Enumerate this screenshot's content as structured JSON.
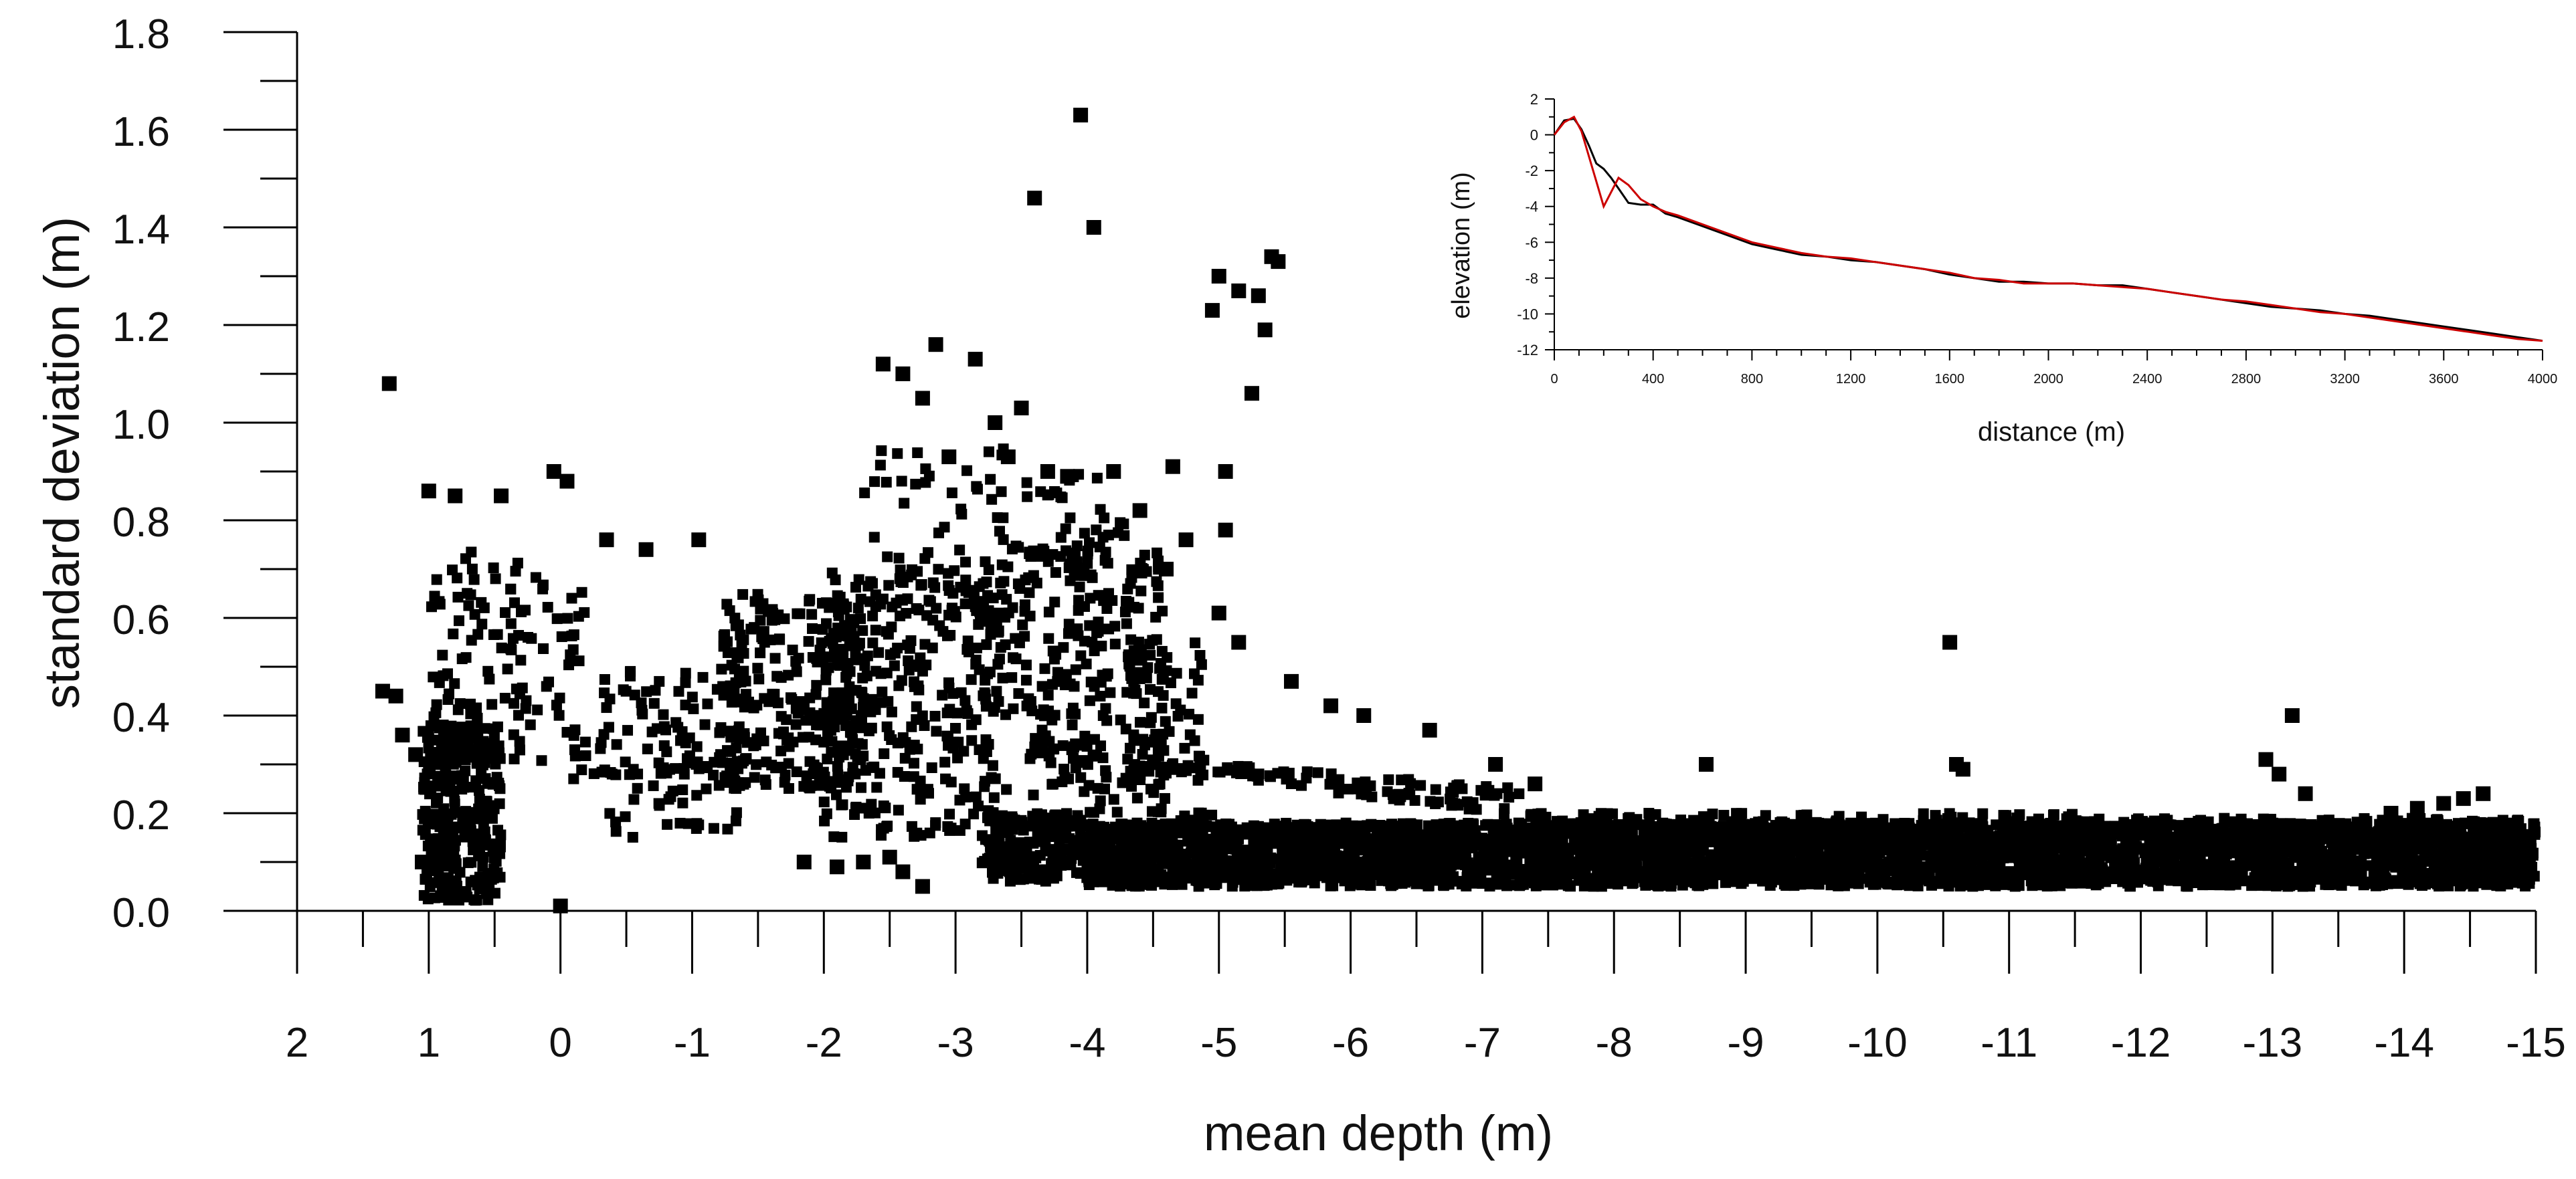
{
  "chart_data": [
    {
      "type": "scatter",
      "title": "",
      "xlabel": "mean depth (m)",
      "ylabel": "standard deviation  (m)",
      "xlim": [
        2,
        -15
      ],
      "ylim": [
        0,
        1.8
      ],
      "x_ticks": [
        "2",
        "1",
        "0",
        "-1",
        "-2",
        "-3",
        "-4",
        "-5",
        "-6",
        "-7",
        "-8",
        "-9",
        "-10",
        "-11",
        "-12",
        "-13",
        "-14",
        "-15"
      ],
      "y_ticks": [
        "0.0",
        "0.2",
        "0.4",
        "0.6",
        "0.8",
        "1.0",
        "1.2",
        "1.4",
        "1.6",
        "1.8"
      ],
      "grid": false,
      "marker_color": "#000000",
      "sparse_points": [
        [
          1.3,
          1.08
        ],
        [
          -3.95,
          1.63
        ],
        [
          -3.6,
          1.46
        ],
        [
          -4.05,
          1.4
        ],
        [
          -5.4,
          1.34
        ],
        [
          -5.45,
          1.33
        ],
        [
          -5.0,
          1.3
        ],
        [
          -5.15,
          1.27
        ],
        [
          -5.3,
          1.26
        ],
        [
          -4.95,
          1.23
        ],
        [
          -5.35,
          1.19
        ],
        [
          -5.25,
          1.06
        ],
        [
          -2.85,
          1.16
        ],
        [
          -3.15,
          1.13
        ],
        [
          -2.45,
          1.12
        ],
        [
          -2.6,
          1.1
        ],
        [
          -2.75,
          1.05
        ],
        [
          -3.5,
          1.03
        ],
        [
          -3.3,
          1.0
        ],
        [
          -2.95,
          0.93
        ],
        [
          -3.4,
          0.93
        ],
        [
          -3.7,
          0.9
        ],
        [
          -3.85,
          0.89
        ],
        [
          -4.2,
          0.9
        ],
        [
          -4.65,
          0.91
        ],
        [
          -5.05,
          0.9
        ],
        [
          -5.05,
          0.78
        ],
        [
          -4.75,
          0.76
        ],
        [
          -4.4,
          0.82
        ],
        [
          -4.6,
          0.7
        ],
        [
          -5.0,
          0.61
        ],
        [
          -5.15,
          0.55
        ],
        [
          -5.55,
          0.47
        ],
        [
          -5.85,
          0.42
        ],
        [
          -6.1,
          0.4
        ],
        [
          -6.6,
          0.37
        ],
        [
          -7.1,
          0.3
        ],
        [
          -7.4,
          0.26
        ],
        [
          -8.7,
          0.3
        ],
        [
          -10.55,
          0.55
        ],
        [
          -10.6,
          0.3
        ],
        [
          -10.65,
          0.29
        ],
        [
          -13.15,
          0.4
        ],
        [
          -12.95,
          0.31
        ],
        [
          -13.05,
          0.28
        ],
        [
          -13.25,
          0.24
        ],
        [
          -14.6,
          0.24
        ],
        [
          -14.45,
          0.23
        ],
        [
          -14.3,
          0.22
        ],
        [
          -14.1,
          0.21
        ],
        [
          -13.9,
          0.2
        ],
        [
          1.0,
          0.86
        ],
        [
          0.8,
          0.85
        ],
        [
          0.45,
          0.85
        ],
        [
          0.05,
          0.9
        ],
        [
          -0.05,
          0.88
        ],
        [
          -0.35,
          0.76
        ],
        [
          -0.65,
          0.74
        ],
        [
          -1.05,
          0.76
        ],
        [
          1.35,
          0.45
        ],
        [
          1.25,
          0.44
        ],
        [
          1.1,
          0.32
        ],
        [
          1.2,
          0.36
        ],
        [
          1.05,
          0.1
        ],
        [
          0.0,
          0.01
        ],
        [
          -2.1,
          0.09
        ],
        [
          -2.3,
          0.1
        ],
        [
          -2.6,
          0.08
        ],
        [
          -2.75,
          0.05
        ],
        [
          -2.5,
          0.11
        ],
        [
          -1.85,
          0.1
        ]
      ],
      "clusters": [
        {
          "x": [
            0.45,
            1.05
          ],
          "y": [
            0.02,
            0.38
          ],
          "n": 320
        },
        {
          "x": [
            0.3,
            1.0
          ],
          "y": [
            0.3,
            0.75
          ],
          "n": 90
        },
        {
          "x": [
            -0.2,
            0.3
          ],
          "y": [
            0.3,
            0.7
          ],
          "n": 40
        },
        {
          "x": [
            -0.3,
            -1.4
          ],
          "y": [
            0.15,
            0.5
          ],
          "n": 110
        },
        {
          "x": [
            -1.2,
            -2.3
          ],
          "y": [
            0.25,
            0.65
          ],
          "n": 260
        },
        {
          "x": [
            -2.0,
            -3.3
          ],
          "y": [
            0.15,
            0.7
          ],
          "n": 300
        },
        {
          "x": [
            -2.3,
            -3.4
          ],
          "y": [
            0.6,
            0.95
          ],
          "n": 60
        },
        {
          "x": [
            -3.2,
            -4.6
          ],
          "y": [
            0.2,
            0.75
          ],
          "n": 280
        },
        {
          "x": [
            -3.4,
            -4.3
          ],
          "y": [
            0.7,
            0.9
          ],
          "n": 40
        },
        {
          "x": [
            -4.3,
            -4.9
          ],
          "y": [
            0.25,
            0.55
          ],
          "n": 60
        },
        {
          "x": [
            -3.2,
            -4.0
          ],
          "y": [
            0.06,
            0.2
          ],
          "n": 180
        },
        {
          "x": [
            -4.0,
            -15.0
          ],
          "y": [
            0.05,
            0.18
          ],
          "n": 4200
        },
        {
          "x": [
            -7.4,
            -11.5
          ],
          "y": [
            0.14,
            0.2
          ],
          "n": 260
        },
        {
          "x": [
            -11.5,
            -14.9
          ],
          "y": [
            0.14,
            0.19
          ],
          "n": 220
        }
      ],
      "band_segments": [
        {
          "x": [
            -3.6,
            -7.4
          ],
          "y": [
            0.33,
            0.2
          ],
          "n": 70
        },
        {
          "x": [
            -4.6,
            -7.3
          ],
          "y": [
            0.3,
            0.24
          ],
          "n": 50
        },
        {
          "x": [
            -3.3,
            -5.0
          ],
          "y": [
            0.1,
            0.2
          ],
          "n": 30
        },
        {
          "x": [
            -0.1,
            -1.3
          ],
          "y": [
            0.28,
            0.3
          ],
          "n": 18
        }
      ]
    },
    {
      "type": "line",
      "title": "",
      "xlabel": "distance (m)",
      "ylabel": "elevation  (m)",
      "xlim": [
        0,
        4000
      ],
      "ylim": [
        -12,
        2
      ],
      "x_ticks": [
        "0",
        "400",
        "800",
        "1200",
        "1600",
        "2000",
        "2400",
        "2800",
        "3200",
        "3600",
        "4000"
      ],
      "y_ticks": [
        "2",
        "0",
        "-2",
        "-4",
        "-6",
        "-8",
        "-10",
        "-12"
      ],
      "grid": false,
      "series": [
        {
          "color": "#000000",
          "x": [
            0,
            40,
            80,
            110,
            140,
            170,
            200,
            230,
            260,
            300,
            350,
            400,
            450,
            500,
            600,
            700,
            800,
            900,
            1000,
            1100,
            1200,
            1300,
            1400,
            1500,
            1600,
            1700,
            1800,
            1900,
            2000,
            2100,
            2200,
            2300,
            2400,
            2500,
            2600,
            2700,
            2800,
            2900,
            3000,
            3100,
            3200,
            3300,
            3400,
            3500,
            3600,
            3700,
            3800,
            3900,
            4000
          ],
          "y": [
            0.0,
            0.8,
            0.9,
            0.3,
            -0.6,
            -1.6,
            -1.9,
            -2.4,
            -3.0,
            -3.8,
            -3.9,
            -3.9,
            -4.4,
            -4.6,
            -5.1,
            -5.6,
            -6.1,
            -6.4,
            -6.7,
            -6.8,
            -7.0,
            -7.1,
            -7.3,
            -7.5,
            -7.8,
            -8.0,
            -8.2,
            -8.2,
            -8.3,
            -8.3,
            -8.4,
            -8.4,
            -8.6,
            -8.8,
            -9.0,
            -9.2,
            -9.4,
            -9.6,
            -9.7,
            -9.8,
            -10.0,
            -10.1,
            -10.3,
            -10.5,
            -10.7,
            -10.9,
            -11.1,
            -11.3,
            -11.5
          ]
        },
        {
          "color": "#cc0000",
          "x": [
            0,
            40,
            80,
            110,
            140,
            170,
            200,
            230,
            260,
            300,
            350,
            400,
            450,
            500,
            600,
            700,
            800,
            900,
            1000,
            1100,
            1200,
            1300,
            1400,
            1500,
            1600,
            1700,
            1800,
            1900,
            2000,
            2100,
            2200,
            2300,
            2400,
            2500,
            2600,
            2700,
            2800,
            2900,
            3000,
            3100,
            3200,
            3300,
            3400,
            3500,
            3600,
            3700,
            3800,
            3900,
            4000
          ],
          "y": [
            0.0,
            0.7,
            1.0,
            0.2,
            -1.2,
            -2.6,
            -4.0,
            -3.2,
            -2.4,
            -2.8,
            -3.6,
            -4.0,
            -4.3,
            -4.5,
            -5.0,
            -5.5,
            -6.0,
            -6.3,
            -6.6,
            -6.8,
            -6.9,
            -7.1,
            -7.3,
            -7.5,
            -7.7,
            -8.0,
            -8.1,
            -8.3,
            -8.3,
            -8.3,
            -8.4,
            -8.5,
            -8.6,
            -8.8,
            -9.0,
            -9.2,
            -9.3,
            -9.5,
            -9.7,
            -9.9,
            -10.0,
            -10.2,
            -10.4,
            -10.6,
            -10.8,
            -11.0,
            -11.2,
            -11.4,
            -11.5
          ]
        }
      ]
    }
  ]
}
